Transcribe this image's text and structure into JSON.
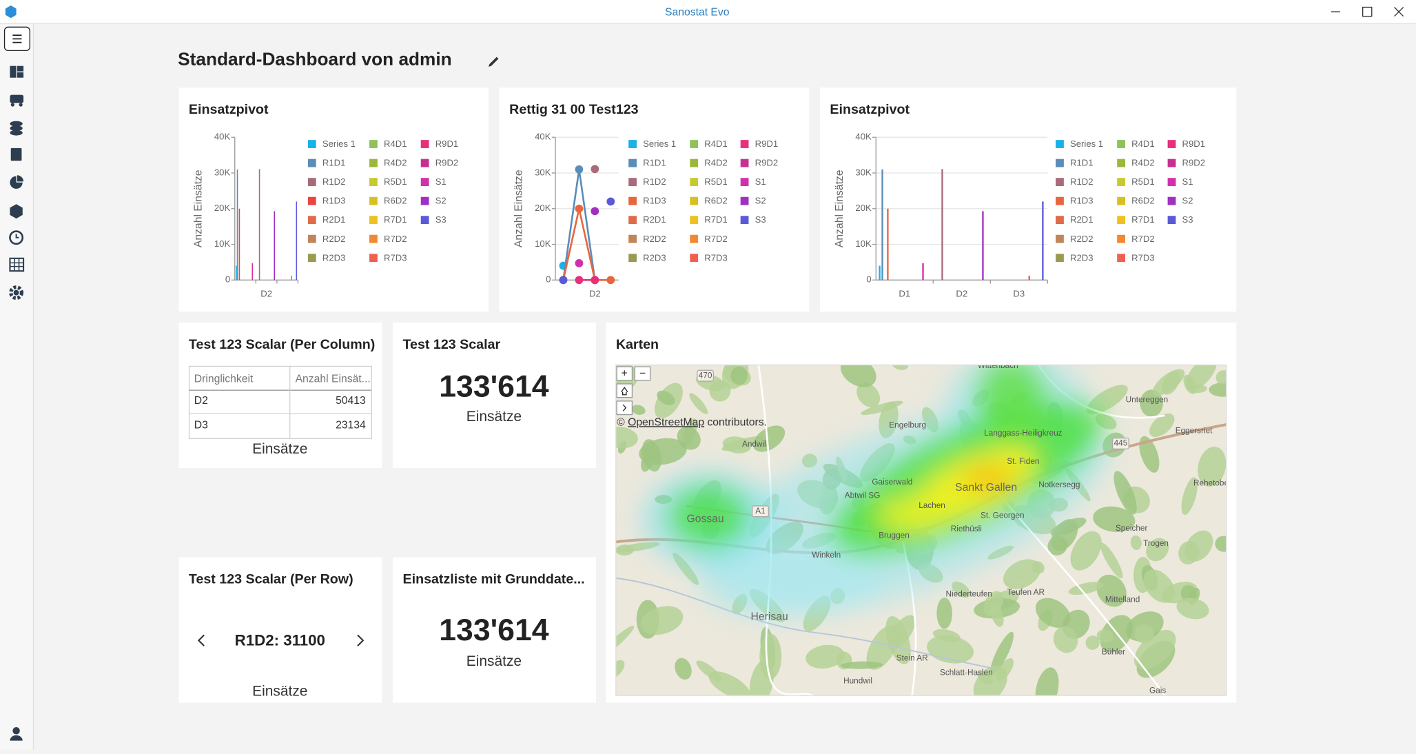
{
  "app": {
    "title": "Sanostat Evo"
  },
  "dashboard": {
    "title": "Standard-Dashboard von admin"
  },
  "chart_data": [
    {
      "type": "bar",
      "title": "Einsatzpivot",
      "y_label": "Anzahl Einsätze",
      "grid": false,
      "categories": [
        null,
        "D2",
        null
      ],
      "ylim": [
        0,
        40000
      ],
      "yticks": [
        0,
        {
          "value": 10000,
          "label": "10K"
        },
        {
          "value": 20000,
          "label": "20K"
        },
        {
          "value": 30000,
          "label": "30K"
        },
        {
          "value": 40000,
          "label": "40K"
        }
      ],
      "series": [
        {
          "name": "Series 1",
          "color": "#1ab0e8",
          "values": [
            4000,
            null,
            null
          ]
        },
        {
          "name": "R1D1",
          "color": "#5b8db8",
          "values": [
            31000,
            null,
            null
          ]
        },
        {
          "name": "R1D2",
          "color": "#a86b7a",
          "values": [
            null,
            31100,
            null
          ]
        },
        {
          "name": "R1D3",
          "color": "#e8463e",
          "values": [
            20000,
            null,
            null
          ]
        },
        {
          "name": "R2D1",
          "color": "#e06a4a",
          "values": [
            null,
            null,
            null
          ]
        },
        {
          "name": "R2D2",
          "color": "#c0855a",
          "values": [
            null,
            null,
            null
          ]
        },
        {
          "name": "R2D3",
          "color": "#9a9a50",
          "values": [
            null,
            null,
            null
          ]
        },
        {
          "name": "R4D1",
          "color": "#8fc25a",
          "values": [
            null,
            null,
            null
          ]
        },
        {
          "name": "R4D2",
          "color": "#9ab83a",
          "values": [
            null,
            null,
            null
          ]
        },
        {
          "name": "R5D1",
          "color": "#c8c830",
          "values": [
            null,
            null,
            null
          ]
        },
        {
          "name": "R6D2",
          "color": "#d8c020",
          "values": [
            null,
            null,
            null
          ]
        },
        {
          "name": "R7D1",
          "color": "#f0c020",
          "values": [
            null,
            null,
            null
          ]
        },
        {
          "name": "R7D2",
          "color": "#f08a30",
          "values": [
            null,
            null,
            null
          ]
        },
        {
          "name": "R7D3",
          "color": "#f06050",
          "values": [
            null,
            null,
            1200
          ]
        },
        {
          "name": "R9D1",
          "color": "#e8307a",
          "values": [
            null,
            null,
            null
          ]
        },
        {
          "name": "R9D2",
          "color": "#c83090",
          "values": [
            null,
            null,
            null
          ]
        },
        {
          "name": "S1",
          "color": "#d030b0",
          "values": [
            4700,
            null,
            null
          ]
        },
        {
          "name": "S2",
          "color": "#a030c0",
          "values": [
            null,
            19300,
            null
          ]
        },
        {
          "name": "S3",
          "color": "#5a5ad8",
          "values": [
            null,
            null,
            22000
          ]
        }
      ]
    },
    {
      "type": "line",
      "title": "Rettig 31 00 Test123",
      "y_label": "Anzahl Einsätze",
      "grid": true,
      "categories": [
        null,
        null,
        "D2",
        null
      ],
      "ylim": [
        0,
        40000
      ],
      "yticks": [
        0,
        {
          "value": 10000,
          "label": "10K"
        },
        {
          "value": 20000,
          "label": "20K"
        },
        {
          "value": 30000,
          "label": "30K"
        },
        {
          "value": 40000,
          "label": "40K"
        }
      ],
      "series": [
        {
          "name": "Series 1",
          "color": "#1ab0e8",
          "values": [
            4000,
            null,
            null,
            null
          ]
        },
        {
          "name": "R1D1",
          "color": "#5b8db8",
          "values": [
            0,
            31000,
            0,
            null
          ]
        },
        {
          "name": "R1D2",
          "color": "#a86b7a",
          "values": [
            null,
            null,
            31100,
            null
          ]
        },
        {
          "name": "R1D3",
          "color": "#e8663e",
          "values": [
            0,
            20000,
            0,
            0
          ]
        },
        {
          "name": "R2D1",
          "color": "#e06a4a",
          "values": [
            null,
            null,
            null,
            null
          ]
        },
        {
          "name": "R2D2",
          "color": "#c0855a",
          "values": [
            null,
            null,
            null,
            null
          ]
        },
        {
          "name": "R2D3",
          "color": "#9a9a50",
          "values": [
            null,
            null,
            null,
            null
          ]
        },
        {
          "name": "R4D1",
          "color": "#8fc25a",
          "values": [
            null,
            null,
            null,
            null
          ]
        },
        {
          "name": "R4D2",
          "color": "#9ab83a",
          "values": [
            null,
            null,
            null,
            null
          ]
        },
        {
          "name": "R5D1",
          "color": "#c8c830",
          "values": [
            null,
            null,
            null,
            null
          ]
        },
        {
          "name": "R6D2",
          "color": "#d8c020",
          "values": [
            null,
            null,
            null,
            null
          ]
        },
        {
          "name": "R7D1",
          "color": "#f0c020",
          "values": [
            null,
            null,
            null,
            null
          ]
        },
        {
          "name": "R7D2",
          "color": "#f08a30",
          "values": [
            null,
            null,
            null,
            null
          ]
        },
        {
          "name": "R7D3",
          "color": "#f06050",
          "values": [
            null,
            null,
            null,
            null
          ]
        },
        {
          "name": "R9D1",
          "color": "#e8307a",
          "values": [
            null,
            0,
            0,
            null
          ]
        },
        {
          "name": "R9D2",
          "color": "#c83090",
          "values": [
            null,
            null,
            null,
            null
          ]
        },
        {
          "name": "S1",
          "color": "#d030b0",
          "values": [
            null,
            4700,
            null,
            null
          ]
        },
        {
          "name": "S2",
          "color": "#a030c0",
          "values": [
            null,
            null,
            19300,
            null
          ]
        },
        {
          "name": "S3",
          "color": "#5a5ad8",
          "values": [
            0,
            null,
            null,
            22000
          ]
        }
      ]
    },
    {
      "type": "bar",
      "title": "Einsatzpivot",
      "y_label": "Anzahl Einsätze",
      "grid": true,
      "categories": [
        "D1",
        "D2",
        "D3"
      ],
      "ylim": [
        0,
        40000
      ],
      "yticks": [
        0,
        {
          "value": 10000,
          "label": "10K"
        },
        {
          "value": 20000,
          "label": "20K"
        },
        {
          "value": 30000,
          "label": "30K"
        },
        {
          "value": 40000,
          "label": "40K"
        }
      ],
      "series": [
        {
          "name": "Series 1",
          "color": "#1ab0e8",
          "values": [
            4000,
            null,
            null
          ]
        },
        {
          "name": "R1D1",
          "color": "#5b8db8",
          "values": [
            31000,
            null,
            null
          ]
        },
        {
          "name": "R1D2",
          "color": "#a86b7a",
          "values": [
            null,
            31100,
            null
          ]
        },
        {
          "name": "R1D3",
          "color": "#e8663e",
          "values": [
            20000,
            null,
            null
          ]
        },
        {
          "name": "R2D1",
          "color": "#e06a4a",
          "values": [
            null,
            null,
            null
          ]
        },
        {
          "name": "R2D2",
          "color": "#c0855a",
          "values": [
            null,
            null,
            null
          ]
        },
        {
          "name": "R2D3",
          "color": "#9a9a50",
          "values": [
            null,
            null,
            null
          ]
        },
        {
          "name": "R4D1",
          "color": "#8fc25a",
          "values": [
            null,
            null,
            null
          ]
        },
        {
          "name": "R4D2",
          "color": "#9ab83a",
          "values": [
            null,
            null,
            null
          ]
        },
        {
          "name": "R5D1",
          "color": "#c8c830",
          "values": [
            null,
            null,
            null
          ]
        },
        {
          "name": "R6D2",
          "color": "#d8c020",
          "values": [
            null,
            null,
            null
          ]
        },
        {
          "name": "R7D1",
          "color": "#f0c020",
          "values": [
            null,
            null,
            null
          ]
        },
        {
          "name": "R7D2",
          "color": "#f08a30",
          "values": [
            null,
            null,
            null
          ]
        },
        {
          "name": "R7D3",
          "color": "#f06050",
          "values": [
            null,
            null,
            1200
          ]
        },
        {
          "name": "R9D1",
          "color": "#e8307a",
          "values": [
            null,
            null,
            null
          ]
        },
        {
          "name": "R9D2",
          "color": "#c83090",
          "values": [
            null,
            null,
            null
          ]
        },
        {
          "name": "S1",
          "color": "#d030b0",
          "values": [
            4700,
            null,
            null
          ]
        },
        {
          "name": "S2",
          "color": "#a030c0",
          "values": [
            null,
            19300,
            null
          ]
        },
        {
          "name": "S3",
          "color": "#5a5ad8",
          "values": [
            null,
            null,
            22000
          ]
        }
      ]
    }
  ],
  "widgets": {
    "table": {
      "title": "Test 123 Scalar (Per Column)",
      "columns": [
        "Dringlichkeit",
        "Anzahl Einsät..."
      ],
      "rows": [
        [
          "D2",
          "50413"
        ],
        [
          "D3",
          "23134"
        ]
      ],
      "caption": "Einsätze"
    },
    "scalar": {
      "title": "Test 123 Scalar",
      "value": "133'614",
      "unit": "Einsätze"
    },
    "row_scalar": {
      "title": "Test 123 Scalar (Per Row)",
      "value": "R1D2: 31100",
      "unit": "Einsätze"
    },
    "list_scalar": {
      "title": "Einsatzliste mit Grunddate...",
      "value": "133'614",
      "unit": "Einsätze"
    },
    "map": {
      "title": "Karten",
      "controls": [
        "+",
        "−"
      ],
      "attribution": {
        "prefix": "©",
        "link": "OpenStreetMap",
        "suffix": "contributors."
      },
      "towns": [
        "Gossau",
        "Sankt Gallen",
        "Herisau"
      ],
      "places": [
        "Wittenbach",
        "Untereggen",
        "Engelburg",
        "Eggersriet",
        "Langgass-Heiligkreuz",
        "Andwil",
        "St. Fiden",
        "Gaiserwald",
        "Rehetobel",
        "Notkersegg",
        "Abtwil SG",
        "Lachen",
        "St. Georgen",
        "Riethüsli",
        "Speicher",
        "Bruggen",
        "Trogen",
        "Winkeln",
        "Niederteufen",
        "Teufen AR",
        "Mittelland",
        "Bühler",
        "Stein AR",
        "Hundwil",
        "Schlatt-Haslen",
        "Gais"
      ],
      "roads": [
        "470",
        "445",
        "A1"
      ]
    }
  }
}
